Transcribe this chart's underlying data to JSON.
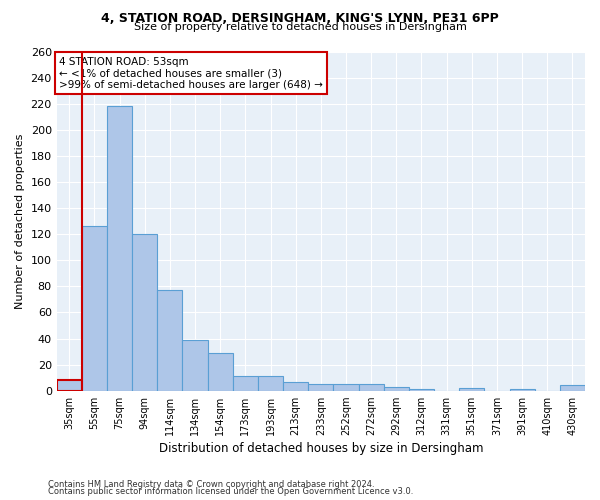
{
  "title_line1": "4, STATION ROAD, DERSINGHAM, KING'S LYNN, PE31 6PP",
  "title_line2": "Size of property relative to detached houses in Dersingham",
  "xlabel": "Distribution of detached houses by size in Dersingham",
  "ylabel": "Number of detached properties",
  "bar_color": "#aec6e8",
  "bar_edge_color": "#5a9fd4",
  "highlight_color": "#cc0000",
  "categories": [
    "35sqm",
    "55sqm",
    "75sqm",
    "94sqm",
    "114sqm",
    "134sqm",
    "154sqm",
    "173sqm",
    "193sqm",
    "213sqm",
    "233sqm",
    "252sqm",
    "272sqm",
    "292sqm",
    "312sqm",
    "331sqm",
    "351sqm",
    "371sqm",
    "391sqm",
    "410sqm",
    "430sqm"
  ],
  "values": [
    8,
    126,
    218,
    120,
    77,
    39,
    29,
    11,
    11,
    7,
    5,
    5,
    5,
    3,
    1,
    0,
    2,
    0,
    1,
    0,
    4
  ],
  "highlight_bin_index": 0,
  "annotation_line1": "4 STATION ROAD: 53sqm",
  "annotation_line2": "← <1% of detached houses are smaller (3)",
  "annotation_line3": ">99% of semi-detached houses are larger (648) →",
  "ylim": [
    0,
    260
  ],
  "yticks": [
    0,
    20,
    40,
    60,
    80,
    100,
    120,
    140,
    160,
    180,
    200,
    220,
    240,
    260
  ],
  "footnote1": "Contains HM Land Registry data © Crown copyright and database right 2024.",
  "footnote2": "Contains public sector information licensed under the Open Government Licence v3.0.",
  "bg_color": "#e8f0f8"
}
